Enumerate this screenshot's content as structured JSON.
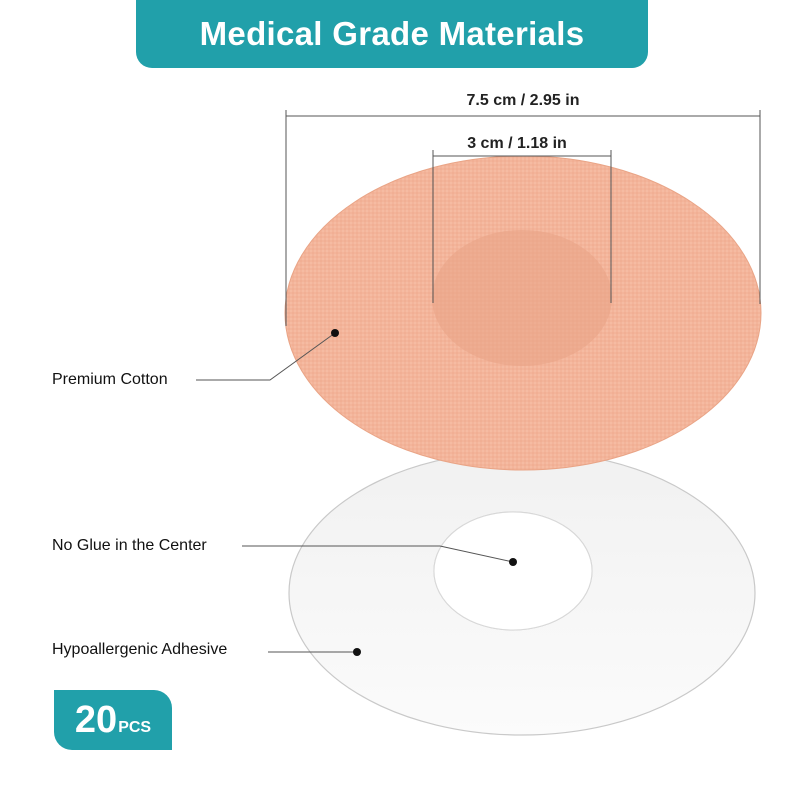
{
  "banner": {
    "title": "Medical Grade Materials"
  },
  "dimensions": {
    "outer": "7.5 cm / 2.95 in",
    "inner": "3 cm / 1.18 in"
  },
  "callouts": {
    "cotton": "Premium Cotton",
    "center": "No Glue in the Center",
    "adhesive": "Hypoallergenic Adhesive"
  },
  "badge": {
    "count": "20",
    "unit": "PCS"
  },
  "colors": {
    "accent": "#21a0aa",
    "patch": "#f3b49a",
    "patch_center": "#e7a285",
    "liner": "#f7f7f7",
    "liner_edge": "#c8c8c8"
  }
}
